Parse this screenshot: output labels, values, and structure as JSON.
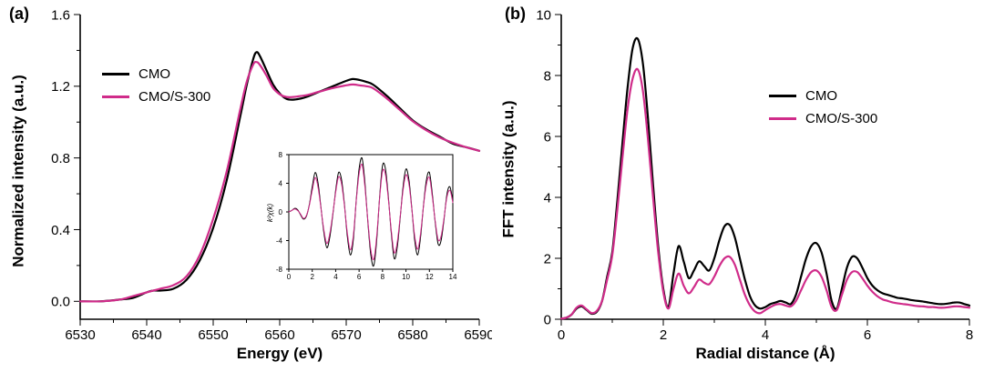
{
  "figure": {
    "background": "#ffffff",
    "accent_magenta": "#d02c8a",
    "line_black": "#000000"
  },
  "chart_data": [
    {
      "id": "xanes",
      "type": "line",
      "panel_label": "(a)",
      "xlabel": "Energy (eV)",
      "ylabel": "Normalized intensity (a.u.)",
      "xlim": [
        6530,
        6590
      ],
      "ylim": [
        -0.1,
        1.6
      ],
      "xticks": [
        6530,
        6540,
        6550,
        6560,
        6570,
        6580,
        6590
      ],
      "xtick_labels": [
        "6530",
        "6540",
        "6550",
        "6560",
        "6570",
        "6580",
        "6590"
      ],
      "xminor": [
        6535,
        6545,
        6555,
        6565,
        6575,
        6585
      ],
      "yticks": [
        0.0,
        0.4,
        0.8,
        1.2,
        1.6
      ],
      "ytick_labels": [
        "0.0",
        "0.4",
        "0.8",
        "1.2",
        "1.6"
      ],
      "yminor": [
        0.2,
        0.6,
        1.0,
        1.4
      ],
      "legend": [
        "CMO",
        "CMO/S-300"
      ],
      "legend_position": "top-left",
      "grid": false,
      "x": [
        6530,
        6533,
        6536,
        6538,
        6540,
        6541,
        6542,
        6544,
        6546,
        6548,
        6550,
        6552,
        6554,
        6555,
        6556,
        6556.5,
        6557,
        6558,
        6559,
        6560,
        6561,
        6562,
        6563,
        6564,
        6566,
        6568,
        6570,
        6571,
        6572,
        6573,
        6574,
        6576,
        6578,
        6580,
        6582,
        6584,
        6586,
        6588,
        6590
      ],
      "series": [
        {
          "name": "CMO",
          "color": "#000000",
          "y": [
            0.0,
            0.0,
            0.01,
            0.02,
            0.05,
            0.06,
            0.06,
            0.07,
            0.12,
            0.23,
            0.41,
            0.67,
            1.02,
            1.2,
            1.35,
            1.39,
            1.37,
            1.29,
            1.21,
            1.16,
            1.13,
            1.125,
            1.13,
            1.14,
            1.17,
            1.2,
            1.23,
            1.24,
            1.235,
            1.225,
            1.21,
            1.15,
            1.08,
            1.01,
            0.96,
            0.92,
            0.88,
            0.86,
            0.84
          ]
        },
        {
          "name": "CMO/S-300",
          "color": "#d02c8a",
          "y": [
            0.0,
            0.0,
            0.01,
            0.03,
            0.05,
            0.06,
            0.07,
            0.09,
            0.14,
            0.26,
            0.46,
            0.72,
            1.06,
            1.22,
            1.32,
            1.335,
            1.32,
            1.26,
            1.19,
            1.155,
            1.14,
            1.14,
            1.145,
            1.15,
            1.17,
            1.19,
            1.205,
            1.21,
            1.205,
            1.2,
            1.19,
            1.135,
            1.07,
            1.005,
            0.955,
            0.915,
            0.885,
            0.86,
            0.84
          ]
        }
      ]
    },
    {
      "id": "exafs-inset",
      "type": "line",
      "ylabel": "k²χ(k)",
      "xlim": [
        0,
        14
      ],
      "ylim": [
        -8,
        8
      ],
      "xticks": [
        0,
        2,
        4,
        6,
        8,
        10,
        12,
        14
      ],
      "xtick_labels": [
        "0",
        "2",
        "4",
        "6",
        "8",
        "10",
        "12",
        "14"
      ],
      "yticks": [
        -8,
        -4,
        0,
        4,
        8
      ],
      "ytick_labels": [
        "-8",
        "-4",
        "0",
        "4",
        "8"
      ],
      "grid": false,
      "x": [
        0,
        0.25,
        0.5,
        0.75,
        1,
        1.25,
        1.5,
        1.75,
        2,
        2.25,
        2.5,
        2.75,
        3,
        3.25,
        3.5,
        3.75,
        4,
        4.25,
        4.5,
        4.75,
        5,
        5.25,
        5.5,
        5.75,
        6,
        6.25,
        6.5,
        6.75,
        7,
        7.25,
        7.5,
        7.75,
        8,
        8.25,
        8.5,
        8.75,
        9,
        9.25,
        9.5,
        9.75,
        10,
        10.25,
        10.5,
        10.75,
        11,
        11.25,
        11.5,
        11.75,
        12,
        12.25,
        12.5,
        12.75,
        13,
        13.25,
        13.5,
        13.75,
        14
      ],
      "series": [
        {
          "name": "CMO",
          "color": "#000000",
          "y": [
            0,
            0.2,
            0.5,
            0.3,
            -0.4,
            -1.0,
            -0.6,
            1.0,
            3.5,
            5.5,
            4.0,
            0.5,
            -3.0,
            -5.0,
            -3.5,
            -0.5,
            3.0,
            5.5,
            4.5,
            1.0,
            -3.5,
            -6.0,
            -4.0,
            1.5,
            6.0,
            7.5,
            4.0,
            -1.5,
            -6.0,
            -7.5,
            -4.0,
            2.0,
            6.5,
            6.0,
            2.0,
            -3.0,
            -6.5,
            -5.0,
            -1.0,
            3.5,
            6.0,
            4.5,
            0.5,
            -4.0,
            -6.0,
            -3.5,
            1.0,
            4.5,
            5.5,
            2.5,
            -1.5,
            -4.5,
            -4.0,
            -1.0,
            2.5,
            3.5,
            1.5
          ]
        },
        {
          "name": "CMO/S-300",
          "color": "#d02c8a",
          "y": [
            0,
            0.2,
            0.4,
            0.2,
            -0.3,
            -0.9,
            -0.5,
            0.9,
            3.0,
            4.8,
            3.4,
            0.4,
            -2.6,
            -4.4,
            -3.0,
            -0.3,
            2.7,
            4.9,
            3.9,
            0.8,
            -3.0,
            -5.3,
            -3.4,
            1.4,
            5.3,
            6.6,
            3.4,
            -1.3,
            -5.3,
            -6.6,
            -3.4,
            1.8,
            5.7,
            5.2,
            1.7,
            -2.6,
            -5.7,
            -4.3,
            -0.8,
            3.0,
            5.2,
            3.9,
            0.4,
            -3.4,
            -5.2,
            -3.0,
            0.9,
            3.9,
            4.8,
            2.1,
            -1.3,
            -3.9,
            -3.4,
            -0.8,
            2.1,
            3.0,
            1.3
          ]
        }
      ]
    },
    {
      "id": "fft",
      "type": "line",
      "panel_label": "(b)",
      "xlabel": "Radial distance (Å)",
      "ylabel": "FFT intensity (a.u.)",
      "xlim": [
        0,
        8
      ],
      "ylim": [
        0,
        10
      ],
      "xticks": [
        0,
        2,
        4,
        6,
        8
      ],
      "xtick_labels": [
        "0",
        "2",
        "4",
        "6",
        "8"
      ],
      "xminor": [
        1,
        3,
        5,
        7
      ],
      "yticks": [
        0,
        2,
        4,
        6,
        8,
        10
      ],
      "ytick_labels": [
        "0",
        "2",
        "4",
        "6",
        "8",
        "10"
      ],
      "yminor": [
        1,
        3,
        5,
        7,
        9
      ],
      "legend": [
        "CMO",
        "CMO/S-300"
      ],
      "legend_position": "center-right",
      "grid": false,
      "x": [
        0,
        0.1,
        0.2,
        0.3,
        0.4,
        0.5,
        0.6,
        0.7,
        0.8,
        0.9,
        1,
        1.1,
        1.2,
        1.3,
        1.4,
        1.5,
        1.6,
        1.7,
        1.8,
        1.9,
        2,
        2.1,
        2.2,
        2.3,
        2.4,
        2.5,
        2.6,
        2.7,
        2.8,
        2.9,
        3,
        3.1,
        3.2,
        3.3,
        3.4,
        3.5,
        3.6,
        3.7,
        3.8,
        3.9,
        4,
        4.1,
        4.2,
        4.3,
        4.4,
        4.5,
        4.6,
        4.7,
        4.8,
        4.9,
        5,
        5.1,
        5.2,
        5.3,
        5.4,
        5.5,
        5.6,
        5.7,
        5.8,
        5.9,
        6,
        6.1,
        6.2,
        6.3,
        6.4,
        6.5,
        6.6,
        6.7,
        6.8,
        6.9,
        7,
        7.1,
        7.2,
        7.3,
        7.4,
        7.5,
        7.6,
        7.7,
        7.8,
        7.9,
        8
      ],
      "series": [
        {
          "name": "CMO",
          "color": "#000000",
          "y": [
            0.02,
            0.05,
            0.15,
            0.35,
            0.42,
            0.3,
            0.18,
            0.25,
            0.6,
            1.4,
            2.2,
            3.9,
            5.8,
            7.6,
            8.9,
            9.2,
            8.4,
            6.6,
            4.4,
            2.4,
            1.0,
            0.4,
            1.5,
            2.4,
            1.9,
            1.35,
            1.6,
            1.9,
            1.75,
            1.6,
            2.0,
            2.6,
            3.05,
            3.1,
            2.7,
            2.0,
            1.3,
            0.75,
            0.45,
            0.35,
            0.4,
            0.5,
            0.55,
            0.6,
            0.55,
            0.5,
            0.8,
            1.4,
            2.0,
            2.4,
            2.5,
            2.2,
            1.5,
            0.6,
            0.35,
            1.0,
            1.7,
            2.05,
            2.0,
            1.7,
            1.35,
            1.1,
            0.95,
            0.85,
            0.8,
            0.75,
            0.7,
            0.68,
            0.65,
            0.62,
            0.6,
            0.58,
            0.55,
            0.52,
            0.5,
            0.5,
            0.52,
            0.55,
            0.55,
            0.5,
            0.45
          ]
        },
        {
          "name": "CMO/S-300",
          "color": "#d02c8a",
          "y": [
            0.02,
            0.05,
            0.15,
            0.38,
            0.45,
            0.32,
            0.2,
            0.28,
            0.6,
            1.3,
            2.1,
            3.6,
            5.3,
            6.9,
            7.9,
            8.2,
            7.5,
            5.9,
            4.0,
            2.2,
            0.9,
            0.35,
            1.0,
            1.5,
            1.1,
            0.85,
            1.05,
            1.3,
            1.2,
            1.15,
            1.4,
            1.75,
            2.0,
            2.05,
            1.8,
            1.3,
            0.8,
            0.45,
            0.25,
            0.2,
            0.3,
            0.4,
            0.48,
            0.5,
            0.45,
            0.42,
            0.6,
            0.95,
            1.3,
            1.55,
            1.6,
            1.4,
            0.95,
            0.4,
            0.3,
            0.8,
            1.3,
            1.55,
            1.55,
            1.35,
            1.1,
            0.9,
            0.75,
            0.65,
            0.6,
            0.55,
            0.52,
            0.5,
            0.48,
            0.45,
            0.43,
            0.42,
            0.4,
            0.4,
            0.38,
            0.38,
            0.4,
            0.42,
            0.42,
            0.4,
            0.38
          ]
        }
      ]
    }
  ]
}
